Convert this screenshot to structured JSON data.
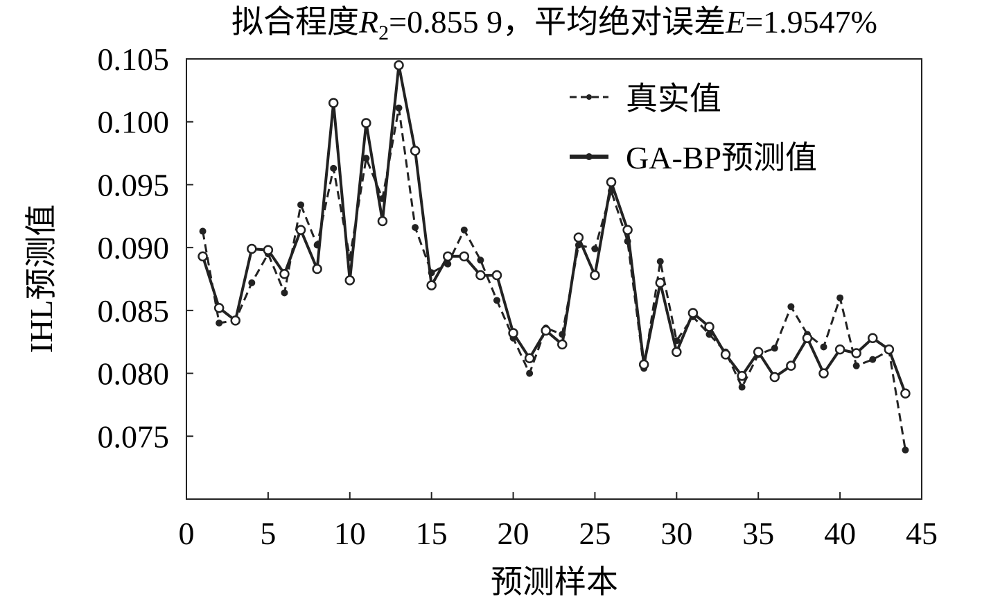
{
  "chart_data": {
    "type": "line",
    "title": {
      "part1": "拟合程度",
      "r_symbol": "R",
      "r_sub": "2",
      "part2": "=0.855 9，平均绝对误差",
      "e_symbol": "E",
      "part3": "=1.9547%"
    },
    "xlabel": "预测样本",
    "ylabel": "IHL预测值",
    "xlim": [
      0,
      45
    ],
    "ylim": [
      0.07,
      0.105
    ],
    "x_ticks": [
      "0",
      "5",
      "10",
      "15",
      "20",
      "25",
      "30",
      "35",
      "40",
      "45"
    ],
    "y_ticks": [
      "0.075",
      "0.080",
      "0.085",
      "0.090",
      "0.095",
      "0.100",
      "0.105"
    ],
    "grid": false,
    "legend_position": "top-right",
    "x": [
      1,
      2,
      3,
      4,
      5,
      6,
      7,
      8,
      9,
      10,
      11,
      12,
      13,
      14,
      15,
      16,
      17,
      18,
      19,
      20,
      21,
      22,
      23,
      24,
      25,
      26,
      27,
      28,
      29,
      30,
      31,
      32,
      33,
      34,
      35,
      36,
      37,
      38,
      39,
      40,
      41,
      42,
      43,
      44
    ],
    "series": [
      {
        "name": "真实值",
        "style": "dashed",
        "values": [
          0.0913,
          0.084,
          0.0842,
          0.0872,
          0.0895,
          0.0864,
          0.0934,
          0.0902,
          0.0963,
          0.0892,
          0.0971,
          0.0939,
          0.1011,
          0.0916,
          0.088,
          0.0887,
          0.0914,
          0.089,
          0.0858,
          0.0828,
          0.08,
          0.0836,
          0.0831,
          0.0902,
          0.0899,
          0.0945,
          0.0905,
          0.0804,
          0.0889,
          0.0826,
          0.0845,
          0.0831,
          0.0817,
          0.0789,
          0.0815,
          0.082,
          0.0853,
          0.0831,
          0.0821,
          0.086,
          0.0806,
          0.0811,
          0.0818,
          0.0739
        ]
      },
      {
        "name": "GA-BP预测值",
        "style": "solid",
        "values": [
          0.0893,
          0.0852,
          0.0842,
          0.0899,
          0.0898,
          0.0879,
          0.0914,
          0.0883,
          0.1015,
          0.0874,
          0.0999,
          0.0921,
          0.1045,
          0.0977,
          0.087,
          0.0893,
          0.0893,
          0.0878,
          0.0878,
          0.0832,
          0.0812,
          0.0834,
          0.0823,
          0.0908,
          0.0878,
          0.0952,
          0.0914,
          0.0807,
          0.0872,
          0.0817,
          0.0848,
          0.0837,
          0.0815,
          0.0798,
          0.0817,
          0.0797,
          0.0806,
          0.0828,
          0.08,
          0.0819,
          0.0816,
          0.0828,
          0.0819,
          0.0784
        ]
      }
    ]
  }
}
